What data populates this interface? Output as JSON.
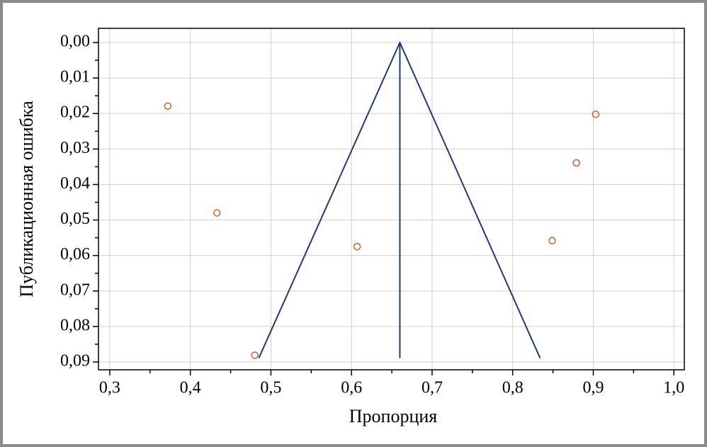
{
  "chart_data": {
    "type": "funnel",
    "x_label": "Пропорция",
    "y_label": "Публикационная ошибка",
    "xlim": [
      0.286,
      1.013
    ],
    "ylim": [
      -0.004,
      0.0922
    ],
    "y_inverted": true,
    "grid": true,
    "xticks": [
      {
        "value": 0.3,
        "label": "0,3"
      },
      {
        "value": 0.4,
        "label": "0,4"
      },
      {
        "value": 0.5,
        "label": "0,5"
      },
      {
        "value": 0.6,
        "label": "0,6"
      },
      {
        "value": 0.7,
        "label": "0,7"
      },
      {
        "value": 0.8,
        "label": "0,8"
      },
      {
        "value": 0.9,
        "label": "0,9"
      },
      {
        "value": 1.0,
        "label": "1,0"
      }
    ],
    "xminor_ticks": [
      0.35,
      0.45,
      0.55,
      0.65,
      0.75,
      0.85,
      0.95
    ],
    "yticks": [
      {
        "value": 0,
        "label": "0,00"
      },
      {
        "value": 0.01,
        "label": "0,01"
      },
      {
        "value": 0.02,
        "label": "0,02"
      },
      {
        "value": 0.03,
        "label": "0,03"
      },
      {
        "value": 0.04,
        "label": "0,04"
      },
      {
        "value": 0.05,
        "label": "0,05"
      },
      {
        "value": 0.06,
        "label": "0,06"
      },
      {
        "value": 0.07,
        "label": "0,07"
      },
      {
        "value": 0.08,
        "label": "0,08"
      },
      {
        "value": 0.09,
        "label": "0,09"
      }
    ],
    "yminor_ticks": [
      0.005,
      0.015,
      0.025,
      0.035,
      0.045,
      0.055,
      0.065,
      0.075,
      0.085
    ],
    "points": {
      "color": "#d0602a",
      "x": [
        0.372,
        0.433,
        0.48,
        0.607,
        0.849,
        0.879,
        0.903
      ],
      "y": [
        0.0179,
        0.048,
        0.0881,
        0.0575,
        0.0558,
        0.0339,
        0.0202
      ]
    },
    "funnel": {
      "color": "#1f3a78",
      "x": [
        0.485,
        0.66,
        0.834
      ],
      "y": [
        0.0889,
        0,
        0.0889
      ]
    },
    "pooled_line": {
      "color": "#1f3a78",
      "x": [
        0.66,
        0.66
      ],
      "y": [
        0,
        0.0889
      ]
    }
  }
}
